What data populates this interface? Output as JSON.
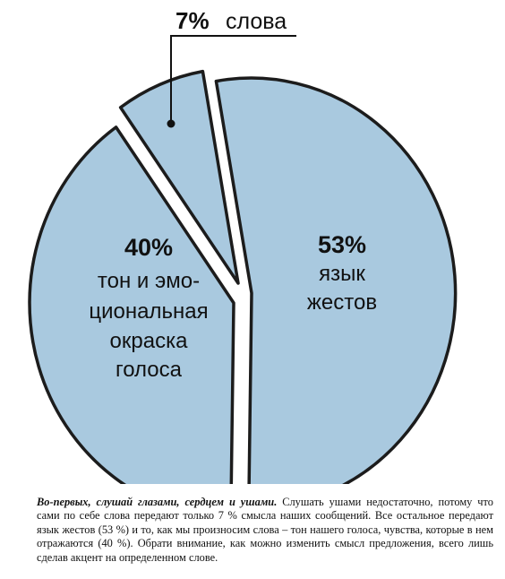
{
  "chart_data": {
    "type": "pie",
    "slices": [
      {
        "value": 53,
        "color": "#a9c9df",
        "label_pct": "53%",
        "label_lines": [
          "язык",
          "жестов"
        ]
      },
      {
        "value": 40,
        "color": "#a9c9df",
        "label_pct": "40%",
        "label_lines": [
          "тон и эмо-",
          "циональная",
          "окраска",
          "голоса"
        ]
      },
      {
        "value": 7,
        "color": "#a9c9df",
        "label_pct": "7%",
        "label_lines": [
          "слова"
        ]
      }
    ]
  },
  "caption": {
    "lead": "Во-первых, слушай глазами, сердцем и ушами.",
    "body": "Слушать ушами недостаточно, потому что сами по себе слова передают только 7 % смысла наших сообщений. Все остальное передают язык жестов (53 %) и то, как мы произносим слова – тон нашего голоса, чувства, которые в нем отражаются (40 %). Обрати внимание, как можно изменить смысл предложения, всего лишь сделав акцент на определенном слове."
  }
}
